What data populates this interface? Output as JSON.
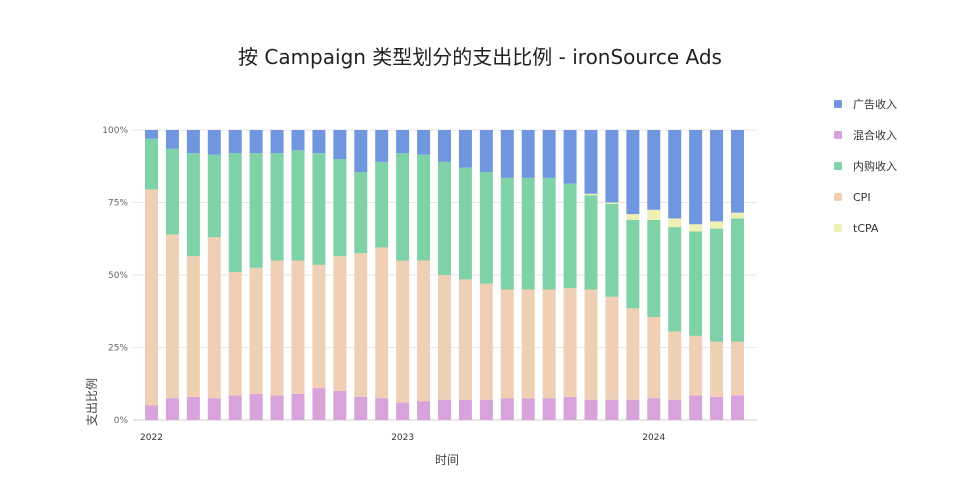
{
  "chart_data": {
    "type": "bar",
    "stacked": true,
    "title": "按 Campaign 类型划分的支出比例 - ironSource Ads",
    "xlabel": "时间",
    "ylabel": "支出比例",
    "ylim": [
      0,
      100
    ],
    "y_ticks": [
      "0%",
      "25%",
      "50%",
      "75%",
      "100%"
    ],
    "x_ticks": [
      {
        "label": "2022",
        "index": 0
      },
      {
        "label": "2023",
        "index": 12
      },
      {
        "label": "2024",
        "index": 24
      }
    ],
    "legend_position": "right",
    "categories": [
      "2022-01",
      "2022-02",
      "2022-03",
      "2022-04",
      "2022-05",
      "2022-06",
      "2022-07",
      "2022-08",
      "2022-09",
      "2022-10",
      "2022-11",
      "2022-12",
      "2023-01",
      "2023-02",
      "2023-03",
      "2023-04",
      "2023-05",
      "2023-06",
      "2023-07",
      "2023-08",
      "2023-09",
      "2023-10",
      "2023-11",
      "2023-12",
      "2024-01",
      "2024-02",
      "2024-03",
      "2024-04",
      "2024-05"
    ],
    "series": [
      {
        "name": "混合收入",
        "color": "#d7a3da",
        "values": [
          5,
          7.5,
          8,
          7.5,
          8.5,
          9,
          8.5,
          9,
          11,
          10,
          8,
          7.5,
          6,
          6.5,
          7,
          7,
          7,
          7.5,
          7.5,
          7.5,
          8,
          7,
          7,
          7,
          7.5,
          7,
          8.5,
          8,
          8.5
        ]
      },
      {
        "name": "CPI",
        "color": "#f0d0b4",
        "values": [
          74.5,
          56.5,
          48.5,
          55.5,
          42.5,
          43.5,
          46.5,
          46,
          42.5,
          46.5,
          49.5,
          52,
          49,
          48.5,
          43,
          41.5,
          40,
          37.5,
          37.5,
          37.5,
          37.5,
          38,
          35.5,
          31.5,
          28,
          23.5,
          20.5,
          19,
          18.5
        ]
      },
      {
        "name": "内购收入",
        "color": "#7fd1a8",
        "values": [
          17.5,
          29.5,
          35.5,
          28.5,
          41,
          39.5,
          37,
          38,
          38.5,
          33.5,
          28,
          29.5,
          37,
          36.5,
          39,
          38.5,
          38.5,
          38.5,
          38.5,
          38.5,
          36,
          32.5,
          32,
          30.5,
          33.5,
          36,
          36,
          39,
          42.5
        ]
      },
      {
        "name": "tCPA",
        "color": "#eef0b4",
        "values": [
          0,
          0,
          0,
          0,
          0,
          0,
          0,
          0,
          0,
          0,
          0,
          0,
          0,
          0,
          0,
          0,
          0,
          0,
          0,
          0,
          0,
          0.5,
          0.5,
          2,
          3.5,
          3,
          2.5,
          2.5,
          2
        ]
      },
      {
        "name": "广告收入",
        "color": "#7096e0",
        "values": [
          3,
          6.5,
          8,
          8.5,
          8,
          8,
          8,
          7,
          8,
          10,
          14.5,
          11,
          8,
          8.5,
          11,
          13,
          14.5,
          16.5,
          16.5,
          16.5,
          18.5,
          22,
          25,
          29,
          27.5,
          30.5,
          32.5,
          31.5,
          28.5
        ]
      }
    ],
    "legend": [
      {
        "name": "广告收入",
        "color": "#7096e0"
      },
      {
        "name": "混合收入",
        "color": "#d7a3da"
      },
      {
        "name": "内购收入",
        "color": "#7fd1a8"
      },
      {
        "name": "CPI",
        "color": "#f0d0b4"
      },
      {
        "name": "tCPA",
        "color": "#eef0b4"
      }
    ]
  }
}
